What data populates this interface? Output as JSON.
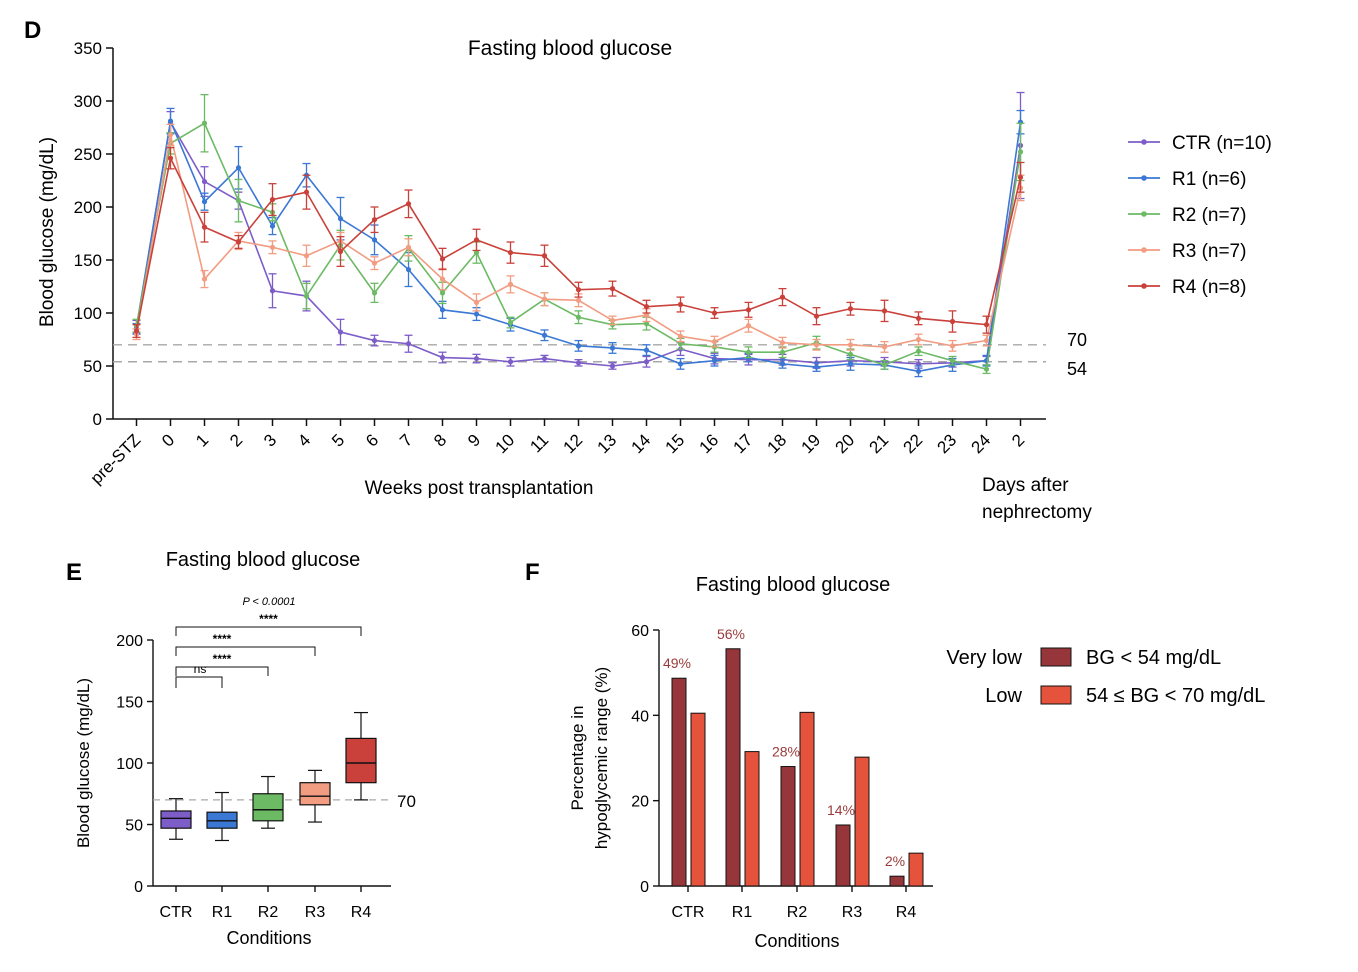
{
  "panels": {
    "D": {
      "letter": "D"
    },
    "E": {
      "letter": "E"
    },
    "F": {
      "letter": "F"
    }
  },
  "colors": {
    "CTR": "#7d5dc8",
    "R1": "#3a78d4",
    "R2": "#6cba64",
    "R3": "#f29c82",
    "R4": "#c9413a",
    "very_low": "#96363a",
    "low": "#e5533d",
    "ref_line": "#a8a8a8",
    "pct_label": "#9b3a3a"
  },
  "chart_data": [
    {
      "id": "D",
      "type": "line",
      "title": "Fasting blood glucose",
      "ylabel": "Blood glucose (mg/dL)",
      "xlabel": "Weeks post transplantation",
      "xlabel2": "Days after nephrectomy",
      "x": [
        "pre-STZ",
        "0",
        "1",
        "2",
        "3",
        "4",
        "5",
        "6",
        "7",
        "8",
        "9",
        "10",
        "11",
        "12",
        "13",
        "14",
        "15",
        "16",
        "17",
        "18",
        "19",
        "20",
        "21",
        "22",
        "23",
        "24",
        "2"
      ],
      "ylim": [
        0,
        350
      ],
      "yticks": [
        0,
        50,
        100,
        150,
        200,
        250,
        300,
        350
      ],
      "ref_lines": [
        {
          "value": 70,
          "label": "70"
        },
        {
          "value": 54,
          "label": "54"
        }
      ],
      "legend_position": "right",
      "series": [
        {
          "key": "CTR",
          "name": "CTR (n=10)",
          "values": [
            87,
            280,
            224,
            206,
            121,
            116,
            82,
            74,
            71,
            58,
            57,
            54,
            57,
            53,
            50,
            54,
            66,
            57,
            56,
            56,
            53,
            55,
            54,
            52,
            53,
            55,
            258
          ],
          "errors": [
            6,
            10,
            14,
            8,
            16,
            14,
            12,
            5,
            8,
            5,
            4,
            4,
            3,
            3,
            3,
            5,
            6,
            5,
            5,
            5,
            5,
            5,
            4,
            4,
            4,
            4,
            50
          ]
        },
        {
          "key": "R1",
          "name": "R1 (n=6)",
          "values": [
            85,
            281,
            205,
            237,
            182,
            230,
            189,
            169,
            141,
            103,
            99,
            89,
            79,
            69,
            67,
            65,
            52,
            55,
            58,
            52,
            49,
            52,
            51,
            45,
            51,
            55,
            280
          ],
          "errors": [
            5,
            12,
            8,
            20,
            8,
            11,
            20,
            14,
            16,
            8,
            6,
            6,
            5,
            5,
            5,
            5,
            5,
            5,
            4,
            4,
            4,
            6,
            4,
            5,
            6,
            5,
            11
          ]
        },
        {
          "key": "R2",
          "name": "R2 (n=7)",
          "values": [
            88,
            260,
            279,
            206,
            195,
            116,
            164,
            119,
            161,
            119,
            157,
            91,
            113,
            96,
            89,
            90,
            71,
            68,
            63,
            63,
            72,
            61,
            51,
            64,
            55,
            47,
            252
          ],
          "errors": [
            6,
            10,
            27,
            20,
            8,
            12,
            14,
            9,
            12,
            10,
            10,
            5,
            6,
            6,
            4,
            6,
            5,
            5,
            5,
            5,
            6,
            5,
            4,
            4,
            4,
            4,
            27
          ]
        },
        {
          "key": "R3",
          "name": "R3 (n=7)",
          "values": [
            80,
            268,
            132,
            168,
            162,
            154,
            168,
            147,
            162,
            132,
            110,
            127,
            113,
            112,
            93,
            98,
            78,
            73,
            88,
            72,
            70,
            70,
            68,
            75,
            69,
            74,
            218
          ],
          "errors": [
            5,
            10,
            8,
            8,
            6,
            10,
            8,
            6,
            8,
            10,
            8,
            8,
            6,
            6,
            4,
            6,
            5,
            5,
            6,
            5,
            5,
            5,
            5,
            5,
            5,
            5,
            12
          ]
        },
        {
          "key": "R4",
          "name": "R4 (n=8)",
          "values": [
            83,
            246,
            181,
            167,
            207,
            214,
            158,
            188,
            203,
            151,
            169,
            157,
            154,
            122,
            123,
            106,
            108,
            100,
            103,
            115,
            97,
            104,
            102,
            95,
            92,
            89,
            228
          ],
          "errors": [
            6,
            10,
            14,
            6,
            15,
            16,
            14,
            12,
            13,
            10,
            10,
            10,
            10,
            7,
            7,
            6,
            7,
            5,
            7,
            8,
            8,
            6,
            10,
            6,
            10,
            8,
            14
          ]
        }
      ]
    },
    {
      "id": "E",
      "type": "box",
      "title": "Fasting blood glucose",
      "ylabel": "Blood glucose (mg/dL)",
      "xlabel": "Conditions",
      "ylim": [
        0,
        200
      ],
      "yticks": [
        0,
        50,
        100,
        150,
        200
      ],
      "ref_lines": [
        {
          "value": 70,
          "label": "70"
        }
      ],
      "categories": [
        "CTR",
        "R1",
        "R2",
        "R3",
        "R4"
      ],
      "boxes": [
        {
          "key": "CTR",
          "min": 38,
          "q1": 47,
          "median": 55,
          "q3": 61,
          "max": 71
        },
        {
          "key": "R1",
          "min": 37,
          "q1": 47,
          "median": 53,
          "q3": 60,
          "max": 76
        },
        {
          "key": "R2",
          "min": 47,
          "q1": 53,
          "median": 62,
          "q3": 75,
          "max": 89
        },
        {
          "key": "R3",
          "min": 52,
          "q1": 66,
          "median": 73,
          "q3": 84,
          "max": 94
        },
        {
          "key": "R4",
          "min": 70,
          "q1": 84,
          "median": 100,
          "q3": 120,
          "max": 141
        }
      ],
      "p_value_text": "P < 0.0001",
      "comparisons": [
        {
          "from": "CTR",
          "to": "R1",
          "label": "ns"
        },
        {
          "from": "CTR",
          "to": "R2",
          "label": "****"
        },
        {
          "from": "CTR",
          "to": "R3",
          "label": "****"
        },
        {
          "from": "CTR",
          "to": "R4",
          "label": "****"
        }
      ]
    },
    {
      "id": "F",
      "type": "bar",
      "title": "Fasting blood glucose",
      "ylabel_line1": "Percentage in",
      "ylabel_line2": "hypoglycemic range  (%)",
      "xlabel": "Conditions",
      "ylim": [
        0,
        60
      ],
      "yticks": [
        0,
        20,
        40,
        60
      ],
      "categories": [
        "CTR",
        "R1",
        "R2",
        "R3",
        "R4"
      ],
      "series": [
        {
          "key": "very_low",
          "group_label": "Very low",
          "name": "BG < 54 mg/dL",
          "values": [
            48.7,
            55.6,
            28.0,
            14.3,
            2.3
          ],
          "labels": [
            "49%",
            "56%",
            "28%",
            "14%",
            "2%"
          ]
        },
        {
          "key": "low",
          "group_label": "Low",
          "name": "54 ≤ BG < 70 mg/dL",
          "values": [
            40.5,
            31.5,
            40.7,
            30.2,
            7.7
          ]
        }
      ]
    }
  ]
}
